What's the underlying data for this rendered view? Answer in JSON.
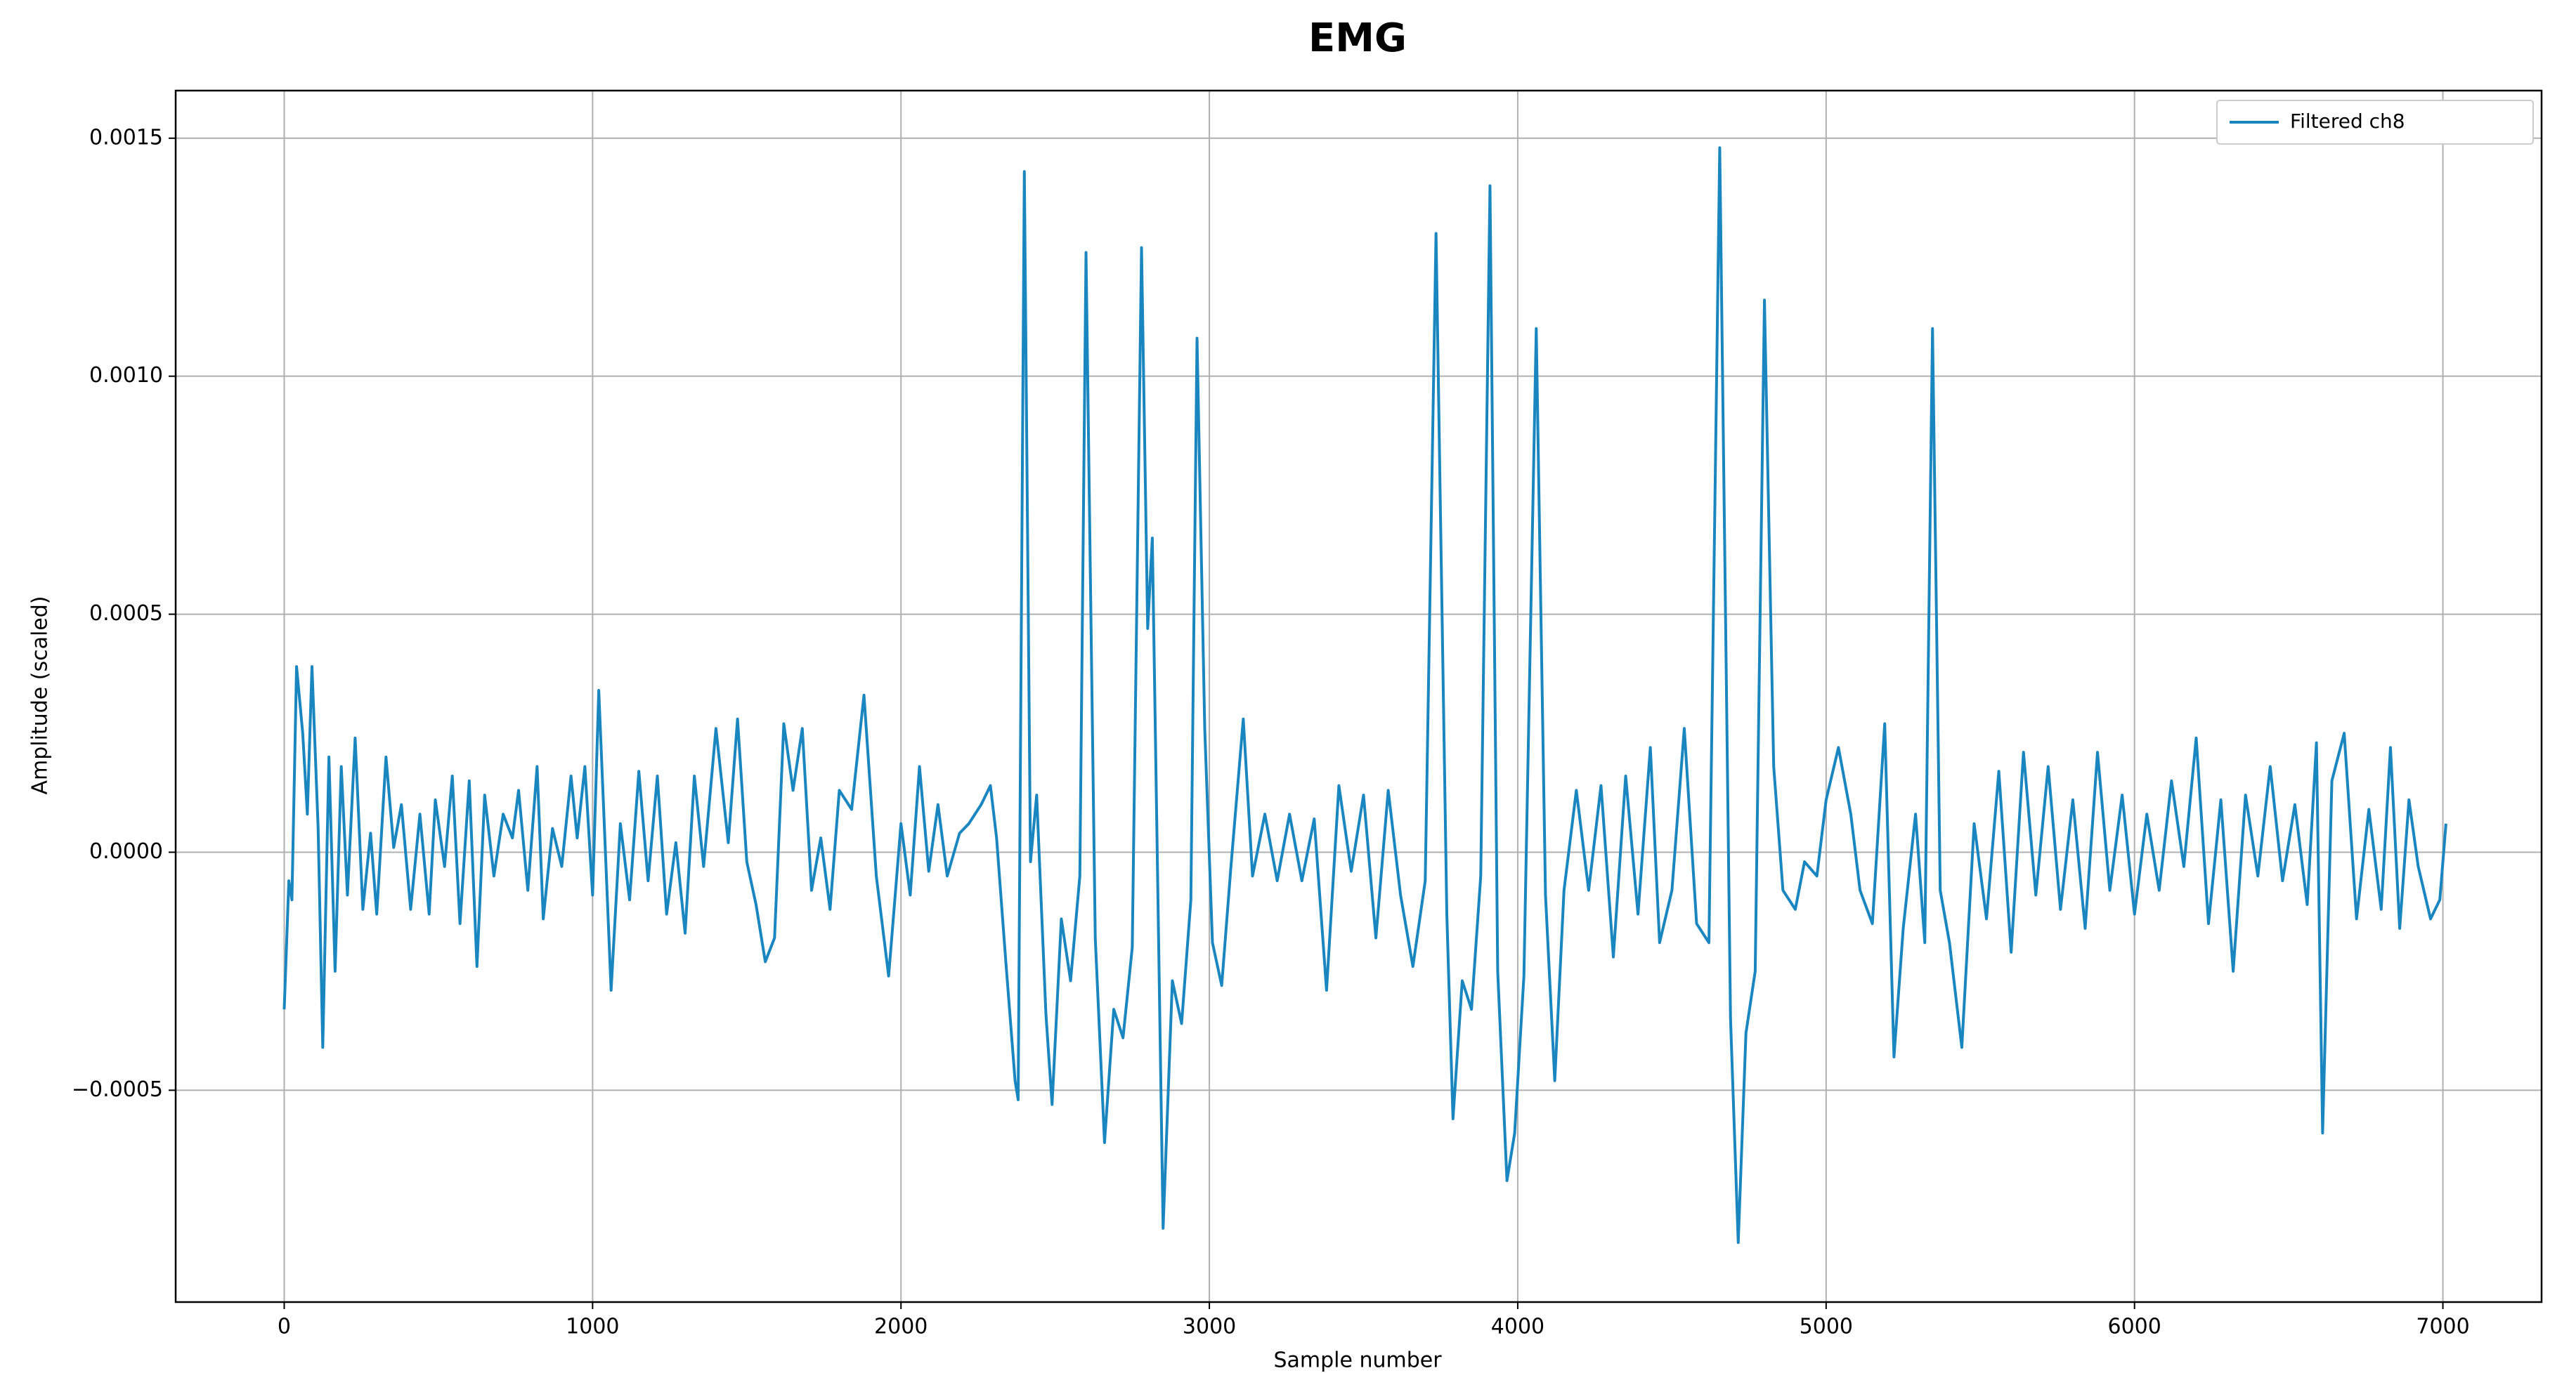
{
  "chart_data": {
    "type": "line",
    "title": "EMG",
    "xlabel": "Sample number",
    "ylabel": "Amplitude (scaled)",
    "xlim": [
      -352,
      7320
    ],
    "ylim": [
      -0.000945,
      0.0016
    ],
    "xticks": [
      0,
      1000,
      2000,
      3000,
      4000,
      5000,
      6000,
      7000
    ],
    "yticks": [
      {
        "value": -0.0005,
        "label": "−0.0005"
      },
      {
        "value": 0,
        "label": "0.0000"
      },
      {
        "value": 0.0005,
        "label": "0.0005"
      },
      {
        "value": 0.001,
        "label": "0.0010"
      },
      {
        "value": 0.0015,
        "label": "0.0015"
      }
    ],
    "grid": true,
    "legend": "upper right",
    "x": [
      0,
      15,
      25,
      40,
      60,
      75,
      90,
      110,
      125,
      145,
      165,
      185,
      205,
      230,
      255,
      280,
      300,
      330,
      355,
      380,
      410,
      440,
      470,
      490,
      520,
      545,
      570,
      600,
      625,
      650,
      680,
      710,
      740,
      760,
      790,
      820,
      840,
      870,
      900,
      930,
      950,
      975,
      1000,
      1020,
      1060,
      1090,
      1120,
      1150,
      1180,
      1210,
      1240,
      1270,
      1300,
      1330,
      1360,
      1400,
      1440,
      1470,
      1500,
      1530,
      1560,
      1590,
      1620,
      1650,
      1680,
      1710,
      1740,
      1770,
      1800,
      1840,
      1880,
      1920,
      1960,
      2000,
      2030,
      2060,
      2090,
      2120,
      2150,
      2190,
      2220,
      2260,
      2290,
      2310,
      2340,
      2370,
      2380,
      2400,
      2420,
      2440,
      2470,
      2490,
      2520,
      2550,
      2580,
      2600,
      2630,
      2660,
      2690,
      2720,
      2750,
      2780,
      2800,
      2815,
      2850,
      2880,
      2910,
      2940,
      2960,
      2985,
      3010,
      3040,
      3070,
      3110,
      3140,
      3180,
      3220,
      3260,
      3300,
      3340,
      3380,
      3420,
      3460,
      3500,
      3540,
      3580,
      3620,
      3660,
      3700,
      3735,
      3770,
      3790,
      3820,
      3850,
      3880,
      3910,
      3935,
      3965,
      3990,
      4020,
      4060,
      4090,
      4120,
      4150,
      4190,
      4230,
      4270,
      4310,
      4350,
      4390,
      4430,
      4460,
      4500,
      4540,
      4580,
      4620,
      4655,
      4690,
      4715,
      4740,
      4770,
      4800,
      4830,
      4860,
      4900,
      4930,
      4970,
      5000,
      5040,
      5080,
      5110,
      5150,
      5190,
      5220,
      5250,
      5290,
      5320,
      5345,
      5370,
      5400,
      5440,
      5480,
      5520,
      5560,
      5600,
      5640,
      5680,
      5720,
      5760,
      5800,
      5840,
      5880,
      5920,
      5960,
      6000,
      6040,
      6080,
      6120,
      6160,
      6200,
      6240,
      6280,
      6320,
      6360,
      6400,
      6440,
      6480,
      6520,
      6560,
      6590,
      6610,
      6640,
      6680,
      6720,
      6760,
      6800,
      6830,
      6860,
      6890,
      6920,
      6960,
      6990,
      7010
    ],
    "series": [
      {
        "name": "Filtered ch8",
        "color": "#1a86c0",
        "values": [
          -0.00033,
          -6e-05,
          -0.0001,
          0.00039,
          0.00025,
          8e-05,
          0.00039,
          5e-05,
          -0.00041,
          0.0002,
          -0.00025,
          0.00018,
          -9e-05,
          0.00024,
          -0.00012,
          4e-05,
          -0.00013,
          0.0002,
          1e-05,
          0.0001,
          -0.00012,
          8e-05,
          -0.00013,
          0.00011,
          -3e-05,
          0.00016,
          -0.00015,
          0.00015,
          -0.00024,
          0.00012,
          -5e-05,
          8e-05,
          3e-05,
          0.00013,
          -8e-05,
          0.00018,
          -0.00014,
          5e-05,
          -3e-05,
          0.00016,
          3e-05,
          0.00018,
          -9e-05,
          0.00034,
          -0.00029,
          6e-05,
          -0.0001,
          0.00017,
          -6e-05,
          0.00016,
          -0.00013,
          2e-05,
          -0.00017,
          0.00016,
          -3e-05,
          0.00026,
          2e-05,
          0.00028,
          -2e-05,
          -0.00011,
          -0.00023,
          -0.00018,
          0.00027,
          0.00013,
          0.00026,
          -8e-05,
          3e-05,
          -0.00012,
          0.00013,
          9e-05,
          0.00033,
          -5e-05,
          -0.00026,
          6e-05,
          -9e-05,
          0.00018,
          -4e-05,
          0.0001,
          -5e-05,
          4e-05,
          6e-05,
          0.0001,
          0.00014,
          3e-05,
          -0.00023,
          -0.00048,
          -0.00052,
          0.00143,
          -2e-05,
          0.00012,
          -0.00034,
          -0.00053,
          -0.00014,
          -0.00027,
          -5e-05,
          0.00126,
          -0.00018,
          -0.00061,
          -0.00033,
          -0.00039,
          -0.0002,
          0.00127,
          0.00047,
          0.00066,
          -0.00079,
          -0.00027,
          -0.00036,
          -0.0001,
          0.00108,
          0.00026,
          -0.00019,
          -0.00028,
          -3e-05,
          0.00028,
          -5e-05,
          8e-05,
          -6e-05,
          8e-05,
          -6e-05,
          7e-05,
          -0.00029,
          0.00014,
          -4e-05,
          0.00012,
          -0.00018,
          0.00013,
          -9e-05,
          -0.00024,
          -6e-05,
          0.0013,
          -0.00013,
          -0.00056,
          -0.00027,
          -0.00033,
          -5e-05,
          0.0014,
          -0.00025,
          -0.00069,
          -0.00059,
          -0.00026,
          0.0011,
          -9e-05,
          -0.00048,
          -8e-05,
          0.00013,
          -8e-05,
          0.00014,
          -0.00022,
          0.00016,
          -0.00013,
          0.00022,
          -0.00019,
          -8e-05,
          0.00026,
          -0.00015,
          -0.00019,
          0.00148,
          -0.00035,
          -0.00082,
          -0.00038,
          -0.00025,
          0.00116,
          0.00018,
          -8e-05,
          -0.00012,
          -2e-05,
          -5e-05,
          0.00011,
          0.00022,
          8e-05,
          -8e-05,
          -0.00015,
          0.00027,
          -0.00043,
          -0.00016,
          8e-05,
          -0.00019,
          0.0011,
          -8e-05,
          -0.00019,
          -0.00041,
          6e-05,
          -0.00014,
          0.00017,
          -0.00021,
          0.00021,
          -9e-05,
          0.00018,
          -0.00012,
          0.00011,
          -0.00016,
          0.00021,
          -8e-05,
          0.00012,
          -0.00013,
          8e-05,
          -8e-05,
          0.00015,
          -3e-05,
          0.00024,
          -0.00015,
          0.00011,
          -0.00025,
          0.00012,
          -5e-05,
          0.00018,
          -6e-05,
          0.0001,
          -0.00011,
          0.00023,
          -0.00059,
          0.00015,
          0.00025,
          -0.00014,
          9e-05,
          -0.00012,
          0.00022,
          -0.00016,
          0.00011,
          -3e-05,
          -0.00014,
          -0.0001,
          6e-05
        ]
      }
    ]
  }
}
